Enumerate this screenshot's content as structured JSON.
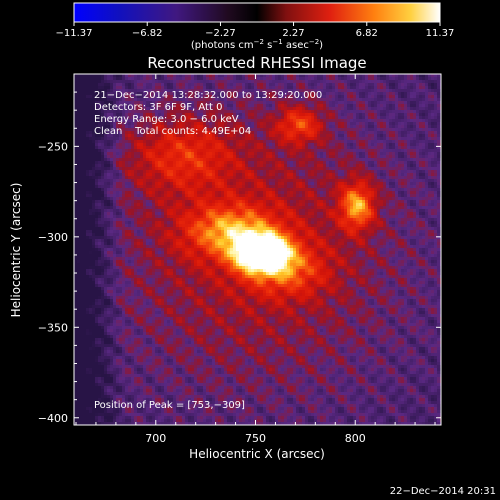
{
  "chart_data": {
    "type": "heatmap",
    "title": "Reconstructed RHESSI Image",
    "xlabel": "Heliocentric X (arcsec)",
    "ylabel": "Heliocentric Y (arcsec)",
    "xlim": [
      659,
      843
    ],
    "ylim": [
      -404,
      -210
    ],
    "x_ticks": [
      700,
      750,
      800
    ],
    "y_ticks": [
      -250,
      -300,
      -350,
      -400
    ],
    "x_tick_labels": [
      "700",
      "750",
      "800"
    ],
    "y_tick_labels": [
      "−250",
      "−300",
      "−350",
      "−400"
    ],
    "colorbar": {
      "range": [
        -11.37,
        11.37
      ],
      "ticks": [
        -11.37,
        -6.82,
        -2.27,
        2.27,
        6.82,
        11.37
      ],
      "tick_labels": [
        "−11.37",
        "−6.82",
        "−2.27",
        "2.27",
        "6.82",
        "11.37"
      ],
      "unit_prefix": "(photons cm",
      "unit_exp1": "−2",
      "unit_mid": " s",
      "unit_exp2": "−1",
      "unit_mid2": " asec",
      "unit_exp3": "−2",
      "unit_suffix": ")"
    },
    "sources": [
      {
        "x": 753,
        "y": -309,
        "sigma_x": 9,
        "sigma_y": 7,
        "amp": 11.37
      },
      {
        "x": 738,
        "y": -297,
        "sigma_x": 16,
        "sigma_y": 10,
        "amp": 5.5
      },
      {
        "x": 765,
        "y": -318,
        "sigma_x": 14,
        "sigma_y": 10,
        "amp": 4.0
      },
      {
        "x": 801,
        "y": -283,
        "sigma_x": 6,
        "sigma_y": 9,
        "amp": 6.2
      },
      {
        "x": 772,
        "y": -238,
        "sigma_x": 8,
        "sigma_y": 7,
        "amp": 4.2
      },
      {
        "x": 713,
        "y": -255,
        "sigma_x": 18,
        "sigma_y": 14,
        "amp": 3.4
      },
      {
        "x": 750,
        "y": -305,
        "sigma_x": 55,
        "sigma_y": 60,
        "amp": 2.8
      }
    ],
    "annotations": {
      "line1": "21−Dec−2014 13:28:32.000 to 13:29:20.000",
      "line2": "Detectors: 3F 6F 9F, Att 0",
      "line3": "Energy Range: 3.0 − 6.0 keV",
      "line4": "Clean    Total counts: 4.49E+04",
      "peak": "Position of Peak = [753,−309]"
    },
    "footer_date": "22−Dec−2014 20:31",
    "colors": {
      "background": "#000000",
      "map_low": "#5a2a8a",
      "map_mid": "#e0180a",
      "map_high": "#ffffe8"
    }
  }
}
